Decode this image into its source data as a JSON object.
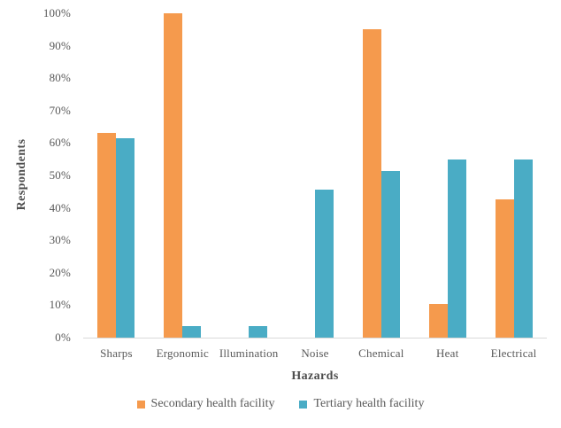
{
  "chart_data": {
    "type": "bar",
    "title": "",
    "categories": [
      "Sharps",
      "Ergonomic",
      "Illumination",
      "Noise",
      "Chemical",
      "Heat",
      "Electrical"
    ],
    "series": [
      {
        "name": "Secondary health facility",
        "color": "#F59A4D",
        "values": [
          63,
          100,
          0,
          0,
          95,
          10.5,
          42.5
        ]
      },
      {
        "name": "Tertiary health facility",
        "color": "#4AACC5",
        "values": [
          61.5,
          3.5,
          3.5,
          45.5,
          51.5,
          55,
          55
        ]
      }
    ],
    "xlabel": "Hazards",
    "ylabel": "Respondents",
    "ylim": [
      0,
      100
    ],
    "ytick_step": 10,
    "ytick_format": "percent",
    "grid": false,
    "legend_position": "bottom"
  },
  "axes": {
    "x_title": "Hazards",
    "y_title": "Respondents",
    "y_ticks": [
      "0%",
      "10%",
      "20%",
      "30%",
      "40%",
      "50%",
      "60%",
      "70%",
      "80%",
      "90%",
      "100%"
    ]
  },
  "legend": {
    "items": [
      {
        "label": "Secondary health facility",
        "color": "#F59A4D"
      },
      {
        "label": "Tertiary health facility",
        "color": "#4AACC5"
      }
    ]
  },
  "colors": {
    "secondary_series": "#F59A4D",
    "tertiary_series": "#4AACC5",
    "axis_line": "#D9D9D9",
    "text": "#595959"
  }
}
